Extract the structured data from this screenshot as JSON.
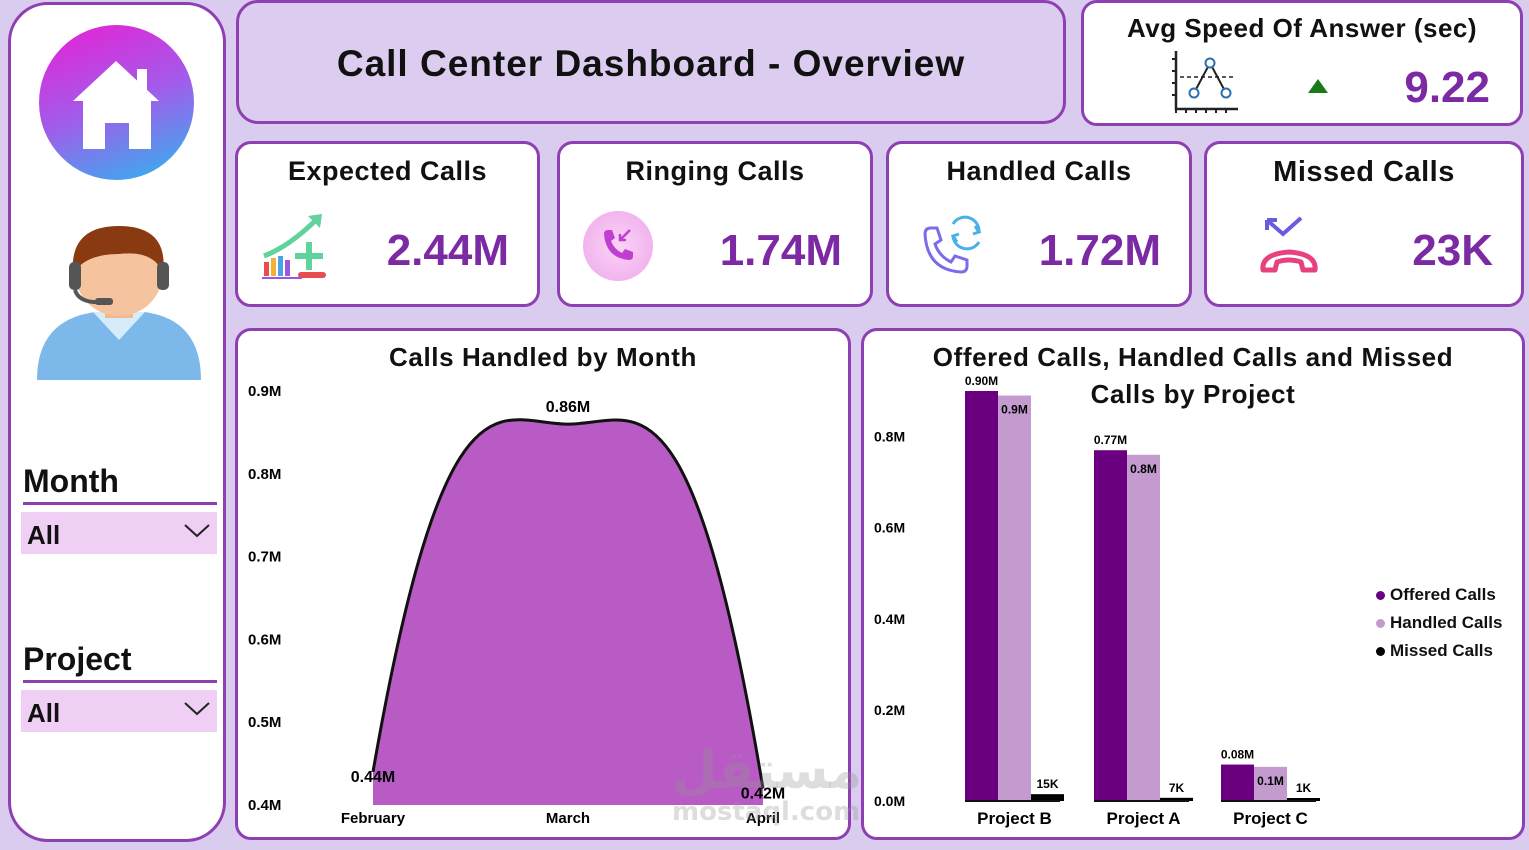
{
  "dashboard_title": "Call Center Dashboard - Overview",
  "avg_speed": {
    "label": "Avg Speed Of Answer (sec)",
    "value": "9.22"
  },
  "kpis": {
    "expected": {
      "label": "Expected Calls",
      "value": "2.44M"
    },
    "ringing": {
      "label": "Ringing Calls",
      "value": "1.74M"
    },
    "handled": {
      "label": "Handled Calls",
      "value": "1.72M"
    },
    "missed": {
      "label": "Missed Calls",
      "value": "23K"
    }
  },
  "filters": {
    "month": {
      "label": "Month",
      "value": "All"
    },
    "project": {
      "label": "Project",
      "value": "All"
    }
  },
  "icons": {
    "home": "home-icon",
    "agent": "agent-avatar-icon",
    "chevron": "chevron-down-icon",
    "speed": "line-chart-icon",
    "trend": "triangle-up-icon",
    "expected": "bar-growth-plus-icon",
    "ringing": "incoming-call-icon",
    "handled": "call-refresh-icon",
    "missed": "missed-call-icon"
  },
  "colors": {
    "accent": "#7b2aa3",
    "border": "#8e3fb2",
    "offered": "#6a0080",
    "handled": "#c39bcf",
    "missed": "#000000",
    "area": "#b85bc4"
  },
  "watermark": {
    "arabic": "مستقل",
    "latin": "mostaql.com"
  },
  "chart_data": [
    {
      "type": "area",
      "title": "Calls Handled by Month",
      "categories": [
        "February",
        "March",
        "April"
      ],
      "values": [
        0.44,
        0.86,
        0.42
      ],
      "data_labels": [
        "0.44M",
        "0.86M",
        "0.42M"
      ],
      "ylim": [
        0.4,
        0.9
      ],
      "yticks": [
        0.4,
        0.5,
        0.6,
        0.7,
        0.8,
        0.9
      ],
      "ytick_labels": [
        "0.4M",
        "0.5M",
        "0.6M",
        "0.7M",
        "0.8M",
        "0.9M"
      ]
    },
    {
      "type": "bar",
      "title_lines": [
        "Offered Calls, Handled Calls and Missed",
        "Calls by Project"
      ],
      "categories": [
        "Project B",
        "Project A",
        "Project C"
      ],
      "ylim": [
        0,
        0.9
      ],
      "yticks": [
        0,
        0.2,
        0.4,
        0.6,
        0.8
      ],
      "ytick_labels": [
        "0.0M",
        "0.2M",
        "0.4M",
        "0.6M",
        "0.8M"
      ],
      "legend_position": "right",
      "series": [
        {
          "name": "Offered Calls",
          "values": [
            0.9,
            0.77,
            0.08
          ],
          "labels": [
            "0.90M",
            "0.77M",
            "0.08M"
          ]
        },
        {
          "name": "Handled Calls",
          "values": [
            0.89,
            0.76,
            0.075
          ],
          "labels": [
            "0.9M",
            "0.8M",
            "0.1M"
          ]
        },
        {
          "name": "Missed Calls",
          "values": [
            0.015,
            0.007,
            0.001
          ],
          "labels": [
            "15K",
            "7K",
            "1K"
          ]
        }
      ]
    }
  ]
}
